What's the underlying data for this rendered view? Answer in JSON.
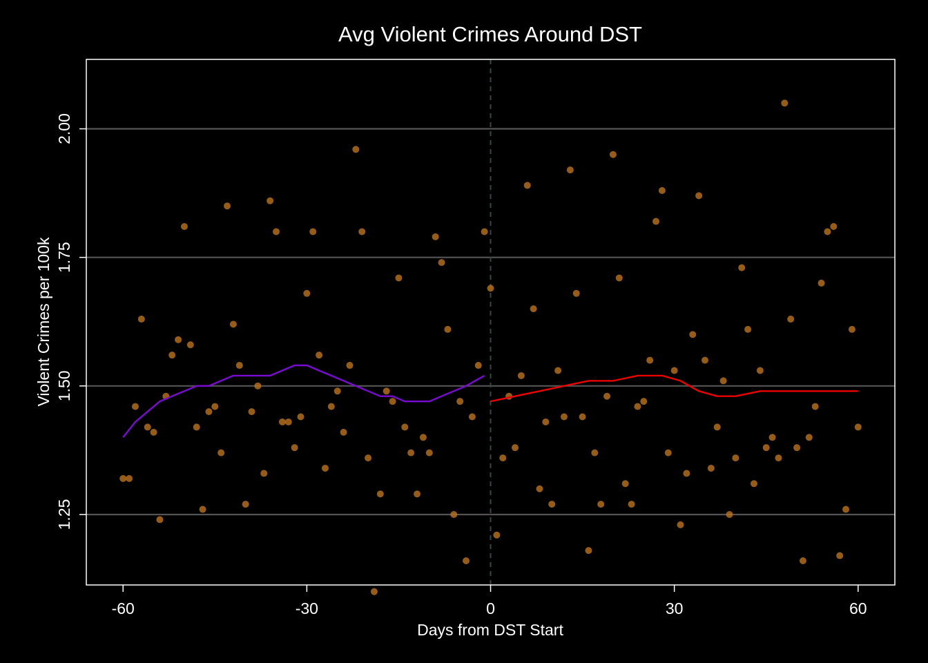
{
  "chart_data": {
    "type": "scatter",
    "title": "Avg Violent Crimes Around DST",
    "xlabel": "Days from DST Start",
    "ylabel": "Violent Crimes per 100k",
    "xlim": [
      -66,
      66
    ],
    "ylim": [
      1.113,
      2.135
    ],
    "xticks": [
      -60,
      -30,
      0,
      30,
      60
    ],
    "xtick_labels": [
      "-60",
      "-30",
      "0",
      "30",
      "60"
    ],
    "yticks": [
      1.25,
      1.5,
      1.75,
      2.0
    ],
    "ytick_labels": [
      "1.25",
      "1.50",
      "1.75",
      "2.00"
    ],
    "grid": "horizontal",
    "reference_line": {
      "x": 0,
      "style": "dashed"
    },
    "colors": {
      "background": "#000000",
      "points": "#b8711c",
      "smooth_pre": "#7b0ad6",
      "smooth_post": "#ee0000",
      "grid": "#555555",
      "reference_line": "#2f4a45",
      "frame": "#ffffff"
    },
    "points": [
      [
        -60,
        1.32
      ],
      [
        -59,
        1.32
      ],
      [
        -58,
        1.46
      ],
      [
        -57,
        1.63
      ],
      [
        -56,
        1.42
      ],
      [
        -55,
        1.41
      ],
      [
        -54,
        1.24
      ],
      [
        -53,
        1.48
      ],
      [
        -52,
        1.56
      ],
      [
        -51,
        1.59
      ],
      [
        -50,
        1.81
      ],
      [
        -49,
        1.58
      ],
      [
        -48,
        1.42
      ],
      [
        -47,
        1.26
      ],
      [
        -46,
        1.45
      ],
      [
        -45,
        1.46
      ],
      [
        -44,
        1.37
      ],
      [
        -43,
        1.85
      ],
      [
        -42,
        1.62
      ],
      [
        -41,
        1.54
      ],
      [
        -40,
        1.27
      ],
      [
        -39,
        1.45
      ],
      [
        -38,
        1.5
      ],
      [
        -37,
        1.33
      ],
      [
        -36,
        1.86
      ],
      [
        -35,
        1.8
      ],
      [
        -34,
        1.43
      ],
      [
        -33,
        1.43
      ],
      [
        -32,
        1.38
      ],
      [
        -31,
        1.44
      ],
      [
        -30,
        1.68
      ],
      [
        -29,
        1.8
      ],
      [
        -28,
        1.56
      ],
      [
        -27,
        1.34
      ],
      [
        -26,
        1.46
      ],
      [
        -25,
        1.49
      ],
      [
        -24,
        1.41
      ],
      [
        -23,
        1.54
      ],
      [
        -22,
        1.96
      ],
      [
        -21,
        1.8
      ],
      [
        -20,
        1.36
      ],
      [
        -19,
        1.1
      ],
      [
        -18,
        1.29
      ],
      [
        -17,
        1.49
      ],
      [
        -16,
        1.47
      ],
      [
        -15,
        1.71
      ],
      [
        -14,
        1.42
      ],
      [
        -13,
        1.37
      ],
      [
        -12,
        1.29
      ],
      [
        -11,
        1.4
      ],
      [
        -10,
        1.37
      ],
      [
        -9,
        1.79
      ],
      [
        -8,
        1.74
      ],
      [
        -7,
        1.61
      ],
      [
        -6,
        1.25
      ],
      [
        -5,
        1.47
      ],
      [
        -4,
        1.16
      ],
      [
        -3,
        1.44
      ],
      [
        -2,
        1.54
      ],
      [
        -1,
        1.8
      ],
      [
        0,
        1.69
      ],
      [
        1,
        1.21
      ],
      [
        2,
        1.36
      ],
      [
        3,
        1.48
      ],
      [
        4,
        1.38
      ],
      [
        5,
        1.52
      ],
      [
        6,
        1.89
      ],
      [
        7,
        1.65
      ],
      [
        8,
        1.3
      ],
      [
        9,
        1.43
      ],
      [
        10,
        1.27
      ],
      [
        11,
        1.53
      ],
      [
        12,
        1.44
      ],
      [
        13,
        1.92
      ],
      [
        14,
        1.68
      ],
      [
        15,
        1.44
      ],
      [
        16,
        1.18
      ],
      [
        17,
        1.37
      ],
      [
        18,
        1.27
      ],
      [
        19,
        1.48
      ],
      [
        20,
        1.95
      ],
      [
        21,
        1.71
      ],
      [
        22,
        1.31
      ],
      [
        23,
        1.27
      ],
      [
        24,
        1.46
      ],
      [
        25,
        1.47
      ],
      [
        26,
        1.55
      ],
      [
        27,
        1.82
      ],
      [
        28,
        1.88
      ],
      [
        29,
        1.37
      ],
      [
        30,
        1.53
      ],
      [
        31,
        1.23
      ],
      [
        32,
        1.33
      ],
      [
        33,
        1.6
      ],
      [
        34,
        1.87
      ],
      [
        35,
        1.55
      ],
      [
        36,
        1.34
      ],
      [
        37,
        1.42
      ],
      [
        38,
        1.51
      ],
      [
        39,
        1.25
      ],
      [
        40,
        1.36
      ],
      [
        41,
        1.73
      ],
      [
        42,
        1.61
      ],
      [
        43,
        1.31
      ],
      [
        44,
        1.53
      ],
      [
        45,
        1.38
      ],
      [
        46,
        1.4
      ],
      [
        47,
        1.36
      ],
      [
        48,
        2.05
      ],
      [
        49,
        1.63
      ],
      [
        50,
        1.38
      ],
      [
        51,
        1.16
      ],
      [
        52,
        1.4
      ],
      [
        53,
        1.46
      ],
      [
        54,
        1.7
      ],
      [
        55,
        1.8
      ],
      [
        56,
        1.81
      ],
      [
        57,
        1.17
      ],
      [
        58,
        1.26
      ],
      [
        59,
        1.61
      ],
      [
        60,
        1.42
      ]
    ],
    "smooth_pre": [
      [
        -60,
        1.4
      ],
      [
        -58,
        1.43
      ],
      [
        -56,
        1.45
      ],
      [
        -54,
        1.47
      ],
      [
        -52,
        1.48
      ],
      [
        -50,
        1.49
      ],
      [
        -48,
        1.5
      ],
      [
        -46,
        1.5
      ],
      [
        -44,
        1.51
      ],
      [
        -42,
        1.52
      ],
      [
        -40,
        1.52
      ],
      [
        -38,
        1.52
      ],
      [
        -36,
        1.52
      ],
      [
        -34,
        1.53
      ],
      [
        -32,
        1.54
      ],
      [
        -30,
        1.54
      ],
      [
        -28,
        1.53
      ],
      [
        -26,
        1.52
      ],
      [
        -24,
        1.51
      ],
      [
        -22,
        1.5
      ],
      [
        -20,
        1.49
      ],
      [
        -18,
        1.48
      ],
      [
        -16,
        1.48
      ],
      [
        -14,
        1.47
      ],
      [
        -12,
        1.47
      ],
      [
        -10,
        1.47
      ],
      [
        -8,
        1.48
      ],
      [
        -6,
        1.49
      ],
      [
        -4,
        1.5
      ],
      [
        -1,
        1.52
      ]
    ],
    "smooth_post": [
      [
        0,
        1.47
      ],
      [
        4,
        1.48
      ],
      [
        8,
        1.49
      ],
      [
        12,
        1.5
      ],
      [
        16,
        1.51
      ],
      [
        20,
        1.51
      ],
      [
        24,
        1.52
      ],
      [
        28,
        1.52
      ],
      [
        31,
        1.51
      ],
      [
        34,
        1.49
      ],
      [
        37,
        1.48
      ],
      [
        40,
        1.48
      ],
      [
        44,
        1.49
      ],
      [
        48,
        1.49
      ],
      [
        52,
        1.49
      ],
      [
        56,
        1.49
      ],
      [
        60,
        1.49
      ]
    ]
  }
}
